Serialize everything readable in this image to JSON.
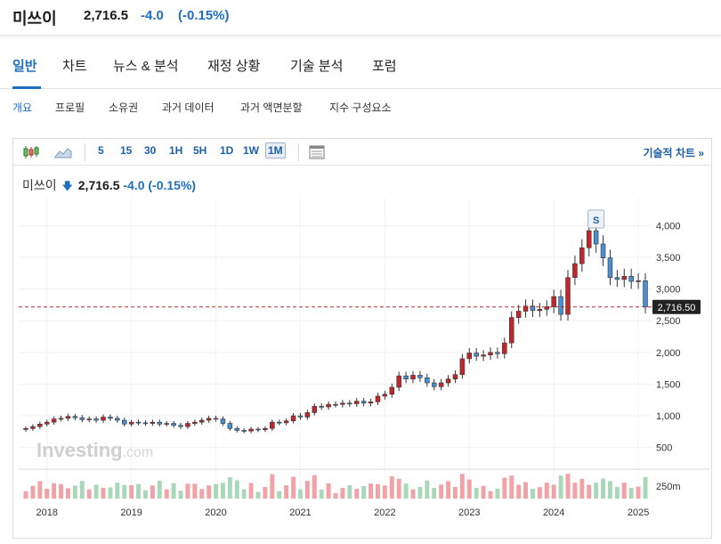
{
  "header": {
    "name": "미쓰이",
    "price": "2,716.5",
    "change": "-4.0",
    "change_pct": "(-0.15%)"
  },
  "tabs": [
    {
      "label": "일반",
      "active": true
    },
    {
      "label": "차트",
      "active": false
    },
    {
      "label": "뉴스 & 분석",
      "active": false
    },
    {
      "label": "재정 상황",
      "active": false
    },
    {
      "label": "기술 분석",
      "active": false
    },
    {
      "label": "포럼",
      "active": false
    }
  ],
  "subtabs": [
    {
      "label": "개요",
      "active": true
    },
    {
      "label": "프로필",
      "active": false
    },
    {
      "label": "소유권",
      "active": false
    },
    {
      "label": "과거 데이터",
      "active": false
    },
    {
      "label": "과거 액면분할",
      "active": false
    },
    {
      "label": "지수 구성요소",
      "active": false
    }
  ],
  "toolbar": {
    "icons": [
      "candlestick-icon",
      "area-chart-icon",
      "table-icon"
    ],
    "intervals": [
      "5",
      "15",
      "30",
      "1H",
      "5H",
      "1D",
      "1W",
      "1M"
    ],
    "selected_interval": "1M",
    "tech_chart_label": "기술적 차트 »"
  },
  "legend": {
    "name": "미쓰이",
    "price": "2,716.5",
    "change": "-4.0",
    "change_pct": "(-0.15%)"
  },
  "colors": {
    "up": "#c0272d",
    "down": "#4a8fd1",
    "accent": "#1e6fc0",
    "vol_up": "#f2a1a4",
    "vol_down": "#a9d8b8",
    "last_line": "#b03030"
  },
  "chart_data": {
    "type": "candlestick",
    "title": "미쓰이",
    "x_labels": [
      "2018",
      "2019",
      "2020",
      "2021",
      "2022",
      "2023",
      "2024",
      "2025"
    ],
    "x_range": [
      "2017-10",
      "2025-02"
    ],
    "y_ticks": [
      500,
      1000,
      1500,
      2000,
      2500,
      3000,
      3500,
      4000
    ],
    "y_tick_labels": [
      "500",
      "1,000",
      "1,500",
      "2,000",
      "2,500",
      "3,000",
      "3,500",
      "4,000"
    ],
    "ylim": [
      200,
      4300
    ],
    "last_price": 2716.5,
    "last_price_label": "2,716.50",
    "volume_axis_label": "250m",
    "watermark": "Investing.com",
    "split_marker": "S",
    "split_marker_date": "2024-07",
    "monthly_close": [
      [
        "2017-10",
        800
      ],
      [
        "2017-11",
        830
      ],
      [
        "2017-12",
        870
      ],
      [
        "2018-01",
        900
      ],
      [
        "2018-02",
        950
      ],
      [
        "2018-03",
        960
      ],
      [
        "2018-04",
        990
      ],
      [
        "2018-05",
        970
      ],
      [
        "2018-06",
        940
      ],
      [
        "2018-07",
        950
      ],
      [
        "2018-08",
        930
      ],
      [
        "2018-09",
        980
      ],
      [
        "2018-10",
        960
      ],
      [
        "2018-11",
        930
      ],
      [
        "2018-12",
        870
      ],
      [
        "2019-01",
        900
      ],
      [
        "2019-02",
        890
      ],
      [
        "2019-03",
        880
      ],
      [
        "2019-04",
        900
      ],
      [
        "2019-05",
        870
      ],
      [
        "2019-06",
        880
      ],
      [
        "2019-07",
        850
      ],
      [
        "2019-08",
        830
      ],
      [
        "2019-09",
        880
      ],
      [
        "2019-10",
        900
      ],
      [
        "2019-11",
        930
      ],
      [
        "2019-12",
        960
      ],
      [
        "2020-01",
        950
      ],
      [
        "2020-02",
        880
      ],
      [
        "2020-03",
        800
      ],
      [
        "2020-04",
        770
      ],
      [
        "2020-05",
        760
      ],
      [
        "2020-06",
        790
      ],
      [
        "2020-07",
        780
      ],
      [
        "2020-08",
        800
      ],
      [
        "2020-09",
        900
      ],
      [
        "2020-10",
        890
      ],
      [
        "2020-11",
        920
      ],
      [
        "2020-12",
        1000
      ],
      [
        "2021-01",
        980
      ],
      [
        "2021-02",
        1050
      ],
      [
        "2021-03",
        1150
      ],
      [
        "2021-04",
        1140
      ],
      [
        "2021-05",
        1180
      ],
      [
        "2021-06",
        1180
      ],
      [
        "2021-07",
        1200
      ],
      [
        "2021-08",
        1190
      ],
      [
        "2021-09",
        1230
      ],
      [
        "2021-10",
        1200
      ],
      [
        "2021-11",
        1220
      ],
      [
        "2021-12",
        1310
      ],
      [
        "2022-01",
        1340
      ],
      [
        "2022-02",
        1450
      ],
      [
        "2022-03",
        1630
      ],
      [
        "2022-04",
        1580
      ],
      [
        "2022-05",
        1640
      ],
      [
        "2022-06",
        1600
      ],
      [
        "2022-07",
        1520
      ],
      [
        "2022-08",
        1460
      ],
      [
        "2022-09",
        1520
      ],
      [
        "2022-10",
        1580
      ],
      [
        "2022-11",
        1650
      ],
      [
        "2022-12",
        1900
      ],
      [
        "2023-01",
        1990
      ],
      [
        "2023-02",
        1940
      ],
      [
        "2023-03",
        1960
      ],
      [
        "2023-04",
        2000
      ],
      [
        "2023-05",
        1980
      ],
      [
        "2023-06",
        2150
      ],
      [
        "2023-07",
        2550
      ],
      [
        "2023-08",
        2650
      ],
      [
        "2023-09",
        2730
      ],
      [
        "2023-10",
        2660
      ],
      [
        "2023-11",
        2680
      ],
      [
        "2023-12",
        2720
      ],
      [
        "2024-01",
        2880
      ],
      [
        "2024-02",
        2600
      ],
      [
        "2024-03",
        3180
      ],
      [
        "2024-04",
        3400
      ],
      [
        "2024-05",
        3650
      ],
      [
        "2024-06",
        3920
      ],
      [
        "2024-07",
        3710
      ],
      [
        "2024-08",
        3490
      ],
      [
        "2024-09",
        3180
      ],
      [
        "2024-10",
        3150
      ],
      [
        "2024-11",
        3200
      ],
      [
        "2024-12",
        3120
      ],
      [
        "2025-01",
        3130
      ],
      [
        "2025-02",
        2716.5
      ]
    ]
  }
}
